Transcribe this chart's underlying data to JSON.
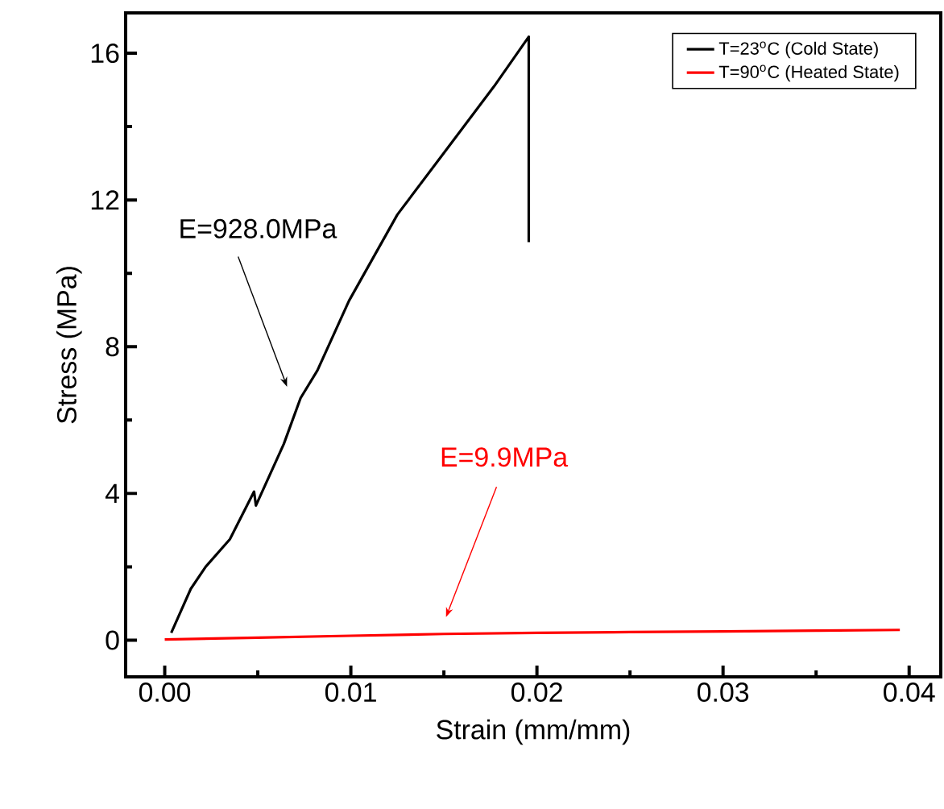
{
  "chart_data": {
    "type": "line",
    "xlabel": "Strain (mm/mm)",
    "ylabel": "Stress (MPa)",
    "xlim": [
      -0.0021,
      0.0417
    ],
    "ylim": [
      -1.0,
      17.1
    ],
    "xticks": [
      {
        "value": 0,
        "label": "0.00"
      },
      {
        "value": 0.01,
        "label": "0.01"
      },
      {
        "value": 0.02,
        "label": "0.02"
      },
      {
        "value": 0.03,
        "label": "0.03"
      },
      {
        "value": 0.04,
        "label": "0.04"
      }
    ],
    "yticks": [
      0,
      4,
      8,
      12,
      16
    ],
    "grid": false,
    "legend": "top right",
    "marker": "none",
    "line_style": "solid",
    "series": [
      {
        "name": "T=23$^{o}$C (Cold State)",
        "color": "#000000",
        "x": [
          0.00035,
          0.0014,
          0.0022,
          0.0035,
          0.0048,
          0.0049,
          0.0064,
          0.0073,
          0.0082,
          0.0099,
          0.0125,
          0.0151,
          0.0177,
          0.01956,
          0.01956
        ],
        "values": [
          0.2,
          1.4,
          2.0,
          2.75,
          4.05,
          3.67,
          5.35,
          6.6,
          7.35,
          9.25,
          11.6,
          13.35,
          15.1,
          16.45,
          10.85
        ]
      },
      {
        "name": "T=90$^{o}$C (Heated State)",
        "color": "#ff0000",
        "x": [
          0.0,
          0.005,
          0.01,
          0.015,
          0.02,
          0.025,
          0.03,
          0.035,
          0.0395
        ],
        "values": [
          0.02,
          0.07,
          0.12,
          0.17,
          0.2,
          0.22,
          0.24,
          0.26,
          0.28
        ]
      }
    ],
    "annotations": [
      "E=928.0MPa",
      "E=9.9MPa"
    ]
  }
}
